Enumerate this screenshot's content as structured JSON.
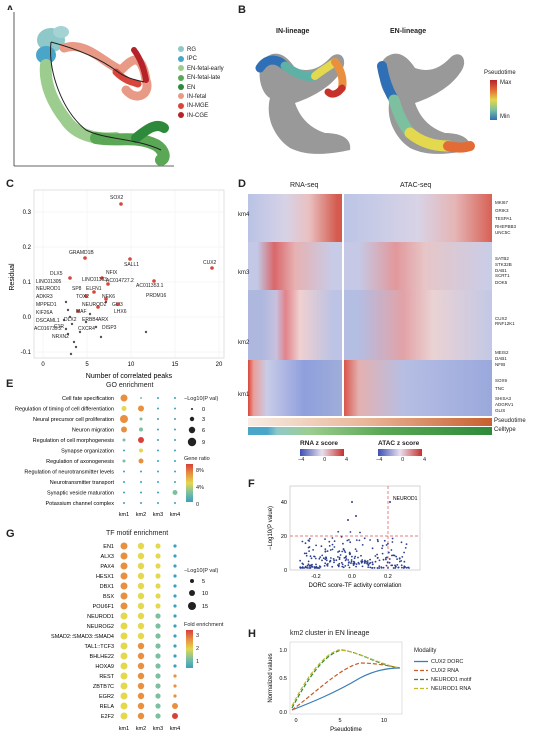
{
  "panel_letters": {
    "a": "A",
    "b": "B",
    "c": "C",
    "d": "D",
    "e": "E",
    "f": "F",
    "g": "G",
    "h": "H"
  },
  "panelA": {
    "legend": [
      {
        "label": "RG",
        "color": "#8fc8c8"
      },
      {
        "label": "IPC",
        "color": "#4aa6c8"
      },
      {
        "label": "EN-fetal-early",
        "color": "#9ccd8f"
      },
      {
        "label": "EN-fetal-late",
        "color": "#5aa855"
      },
      {
        "label": "EN",
        "color": "#2e8a3a"
      },
      {
        "label": "IN-fetal",
        "color": "#e89a86"
      },
      {
        "label": "IN-MGE",
        "color": "#d8453a"
      },
      {
        "label": "IN-CGE",
        "color": "#b5222a"
      }
    ]
  },
  "panelB": {
    "titles": [
      "IN-lineage",
      "EN-lineage"
    ],
    "legend_title": "Pseudotime",
    "legend_max": "Max",
    "legend_min": "Min"
  },
  "panelC": {
    "xlabel": "Number of correlated peaks",
    "ylabel": "Residual",
    "xticks": [
      "0",
      "5",
      "10",
      "15",
      "20"
    ],
    "yticks": [
      "0.3",
      "0.2",
      "0.1",
      "0.0",
      "-0.1"
    ]
  },
  "panelD": {
    "titles": [
      "RNA-seq",
      "ATAC-seq"
    ],
    "clusters": [
      "km4",
      "km3",
      "km2",
      "km1"
    ],
    "genes_km4": [
      "MKI67",
      "GRIK3",
      "TESPA1",
      "RHEPBB3",
      "UNC5C"
    ],
    "genes_km3": [
      "SATB2",
      "STK32B",
      "DAB1",
      "SCRT1",
      "DOK5"
    ],
    "genes_km2": [
      "CUX2",
      "RNF12K1",
      "MEIS2",
      "DAB1",
      "NFIB"
    ],
    "genes_km1": [
      "SOX9",
      "TNC",
      "SHISA3",
      "ADGRV1",
      "GLIS"
    ],
    "track_labels": [
      "Pseudotime",
      "Celltype"
    ],
    "rna_scale_title": "RNA z score",
    "atac_scale_title": "ATAC z score",
    "scale_ticks": [
      "−4",
      "0",
      "4"
    ]
  },
  "panelE": {
    "title": "GO enrichment",
    "terms": [
      "Cell fate specification",
      "Regulation of timing of cell differentiation",
      "Neural precursor cell proliferation",
      "Neuron migration",
      "Regulation of cell morphogenesis",
      "Synapse organization",
      "Regulation of axonogenesis",
      "Regulation of neurotransmitter levels",
      "Neurotransmitter transport",
      "Synaptic vesicle maturation",
      "Potassium channel complex"
    ],
    "columns": [
      "km1",
      "km2",
      "km3",
      "km4"
    ],
    "size_legend_title": "−Log10(P val)",
    "size_legend_values": [
      "0",
      "3",
      "6",
      "9"
    ],
    "color_legend_title": "Gene ratio",
    "color_legend_ticks": [
      "8%",
      "4%",
      "0"
    ]
  },
  "panelF": {
    "xlabel": "DORC score-TF activity correlation",
    "ylabel": "−Log10(P value)",
    "annotation": "NEUROD1",
    "xticks": [
      "-0.2",
      "0.0",
      "0.2"
    ],
    "yticks": [
      "0",
      "20",
      "40"
    ]
  },
  "panelG": {
    "title": "TF motif enrichment",
    "motifs": [
      "EN1",
      "ALX3",
      "PAX4",
      "HESX1",
      "DBX1",
      "BSX",
      "POU6F1",
      "NEUROD1",
      "NEUROG2",
      "SMAD2::SMAD3::SMAD4",
      "TAL1::TCF3",
      "BHLHE22",
      "HOXA9",
      "REST",
      "ZBTB7C",
      "EGR2",
      "RELA",
      "E2F2"
    ],
    "columns": [
      "km1",
      "km2",
      "km3",
      "km4"
    ],
    "size_legend_title": "−Log10(P val)",
    "size_legend_values": [
      "5",
      "10",
      "15"
    ],
    "color_legend_title": "Fold enrichment",
    "color_legend_ticks": [
      "3",
      "2",
      "1"
    ]
  },
  "panelH": {
    "title": "km2 cluster in EN lineage",
    "xlabel": "Pseudotime",
    "ylabel": "Normalized values",
    "legend_title": "Modality",
    "legend": [
      {
        "label": "CUX2 DORC",
        "color": "#3b7db8",
        "dash": ""
      },
      {
        "label": "CUX2 RNA",
        "color": "#c65c2a",
        "dash": "4,2"
      },
      {
        "label": "NEUROD1 motif",
        "color": "#2e8a3a",
        "dash": "4,2"
      },
      {
        "label": "NEUROD1 RNA",
        "color": "#c2b82a",
        "dash": "4,2"
      }
    ],
    "xticks": [
      "0",
      "5",
      "10"
    ],
    "yticks": [
      "1.0",
      "0.5",
      "0.0"
    ]
  },
  "colors": {
    "accent_red": "#d8453a",
    "grid": "#dddddd",
    "text": "#222222"
  }
}
